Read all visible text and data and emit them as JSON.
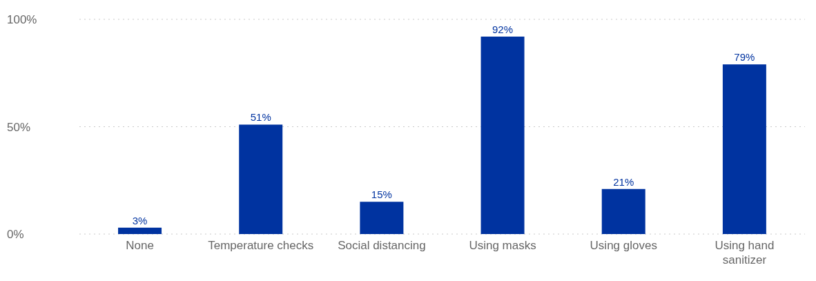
{
  "chart_data": {
    "type": "bar",
    "categories": [
      "None",
      "Temperature checks",
      "Social distancing",
      "Using masks",
      "Using gloves",
      "Using hand sanitizer"
    ],
    "values": [
      3,
      51,
      15,
      92,
      21,
      79
    ],
    "value_labels": [
      "3%",
      "51%",
      "15%",
      "92%",
      "21%",
      "79%"
    ],
    "color": "#0033a0",
    "ylim": [
      0,
      100
    ],
    "yticks": [
      {
        "value": 0,
        "label": "0%"
      },
      {
        "value": 50,
        "label": "50%"
      },
      {
        "value": 100,
        "label": "100%"
      }
    ],
    "grid": "y"
  }
}
